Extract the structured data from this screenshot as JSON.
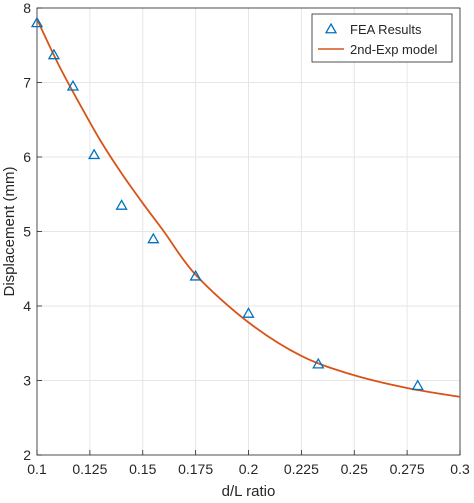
{
  "chart_data": {
    "type": "scatter",
    "xlabel": "d/L ratio",
    "ylabel": "Displacement (mm)",
    "xlim": [
      0.1,
      0.3
    ],
    "ylim": [
      2,
      8
    ],
    "xticks": [
      "0.1",
      "0.125",
      "0.15",
      "0.175",
      "0.2",
      "0.225",
      "0.25",
      "0.275",
      "0.3"
    ],
    "yticks": [
      "2",
      "3",
      "4",
      "5",
      "6",
      "7",
      "8"
    ],
    "grid": true,
    "legend_position": "top-right",
    "series": [
      {
        "name": "FEA Results",
        "kind": "markers",
        "marker": "triangle",
        "color": "#0072BD",
        "x": [
          0.1,
          0.108,
          0.117,
          0.127,
          0.14,
          0.155,
          0.175,
          0.2,
          0.233,
          0.28
        ],
        "y": [
          7.8,
          7.37,
          6.95,
          6.03,
          5.35,
          4.9,
          4.4,
          3.9,
          3.22,
          2.93
        ]
      },
      {
        "name": "2nd-Exp model",
        "kind": "line",
        "color": "#D95319",
        "x": [
          0.1,
          0.11,
          0.12,
          0.13,
          0.14,
          0.15,
          0.16,
          0.175,
          0.2,
          0.225,
          0.25,
          0.275,
          0.3
        ],
        "y": [
          7.85,
          7.25,
          6.72,
          6.22,
          5.78,
          5.38,
          5.0,
          4.42,
          3.78,
          3.33,
          3.07,
          2.9,
          2.78
        ]
      }
    ]
  }
}
